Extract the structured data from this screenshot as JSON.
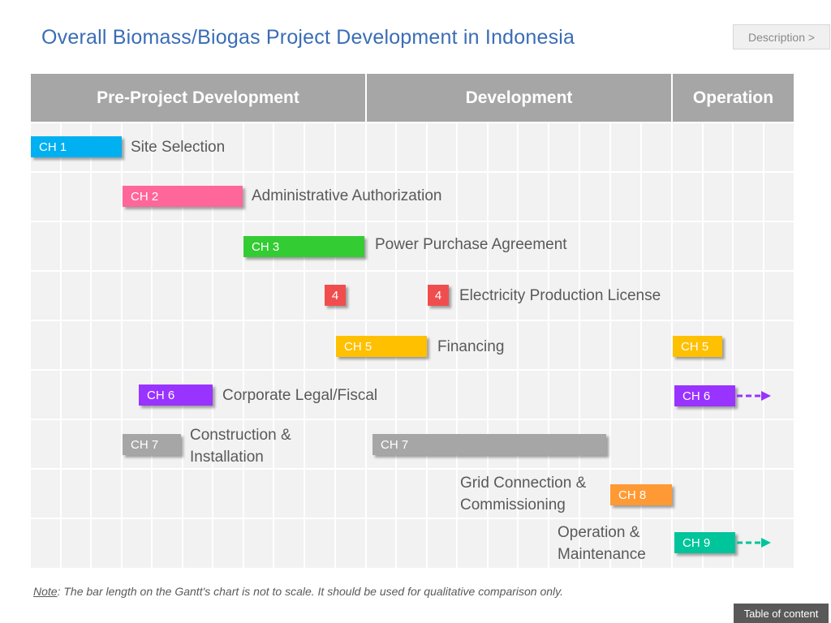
{
  "title": "Overall Biomass/Biogas Project Development in Indonesia",
  "description_button": "Description >",
  "toc_button": "Table of content",
  "note": {
    "prefix": "Note",
    "text": ": The bar length on the Gantt's chart is not to scale. It should be used for qualitative comparison only."
  },
  "phases": [
    "Pre-Project Development",
    "Development",
    "Operation"
  ],
  "colors": {
    "header": "#a6a6a6",
    "ch1": "#00b0f0",
    "ch2": "#ff6699",
    "ch3": "#33cc33",
    "ch4": "#f04e4e",
    "ch5": "#ffc000",
    "ch6": "#9933ff",
    "ch7": "#a6a6a6",
    "ch8": "#ff9933",
    "ch9": "#00c49a"
  },
  "rows": [
    {
      "label": "Site Selection",
      "bars": [
        "CH 1"
      ]
    },
    {
      "label": "Administrative Authorization",
      "bars": [
        "CH 2"
      ]
    },
    {
      "label": "Power Purchase Agreement",
      "bars": [
        "CH 3"
      ]
    },
    {
      "label": "Electricity Production License",
      "bars": [
        "4",
        "4"
      ]
    },
    {
      "label": "Financing",
      "bars": [
        "CH 5",
        "CH 5"
      ]
    },
    {
      "label": "Corporate Legal/Fiscal",
      "bars": [
        "CH 6",
        "CH 6"
      ]
    },
    {
      "label_lines": [
        "Construction &",
        "Installation"
      ],
      "bars": [
        "CH 7",
        "CH 7"
      ]
    },
    {
      "label_lines": [
        "Grid Connection &",
        "Commissioning"
      ],
      "bars": [
        "CH 8"
      ]
    },
    {
      "label_lines": [
        "Operation &",
        "Maintenance"
      ],
      "bars": [
        "CH 9"
      ]
    }
  ]
}
